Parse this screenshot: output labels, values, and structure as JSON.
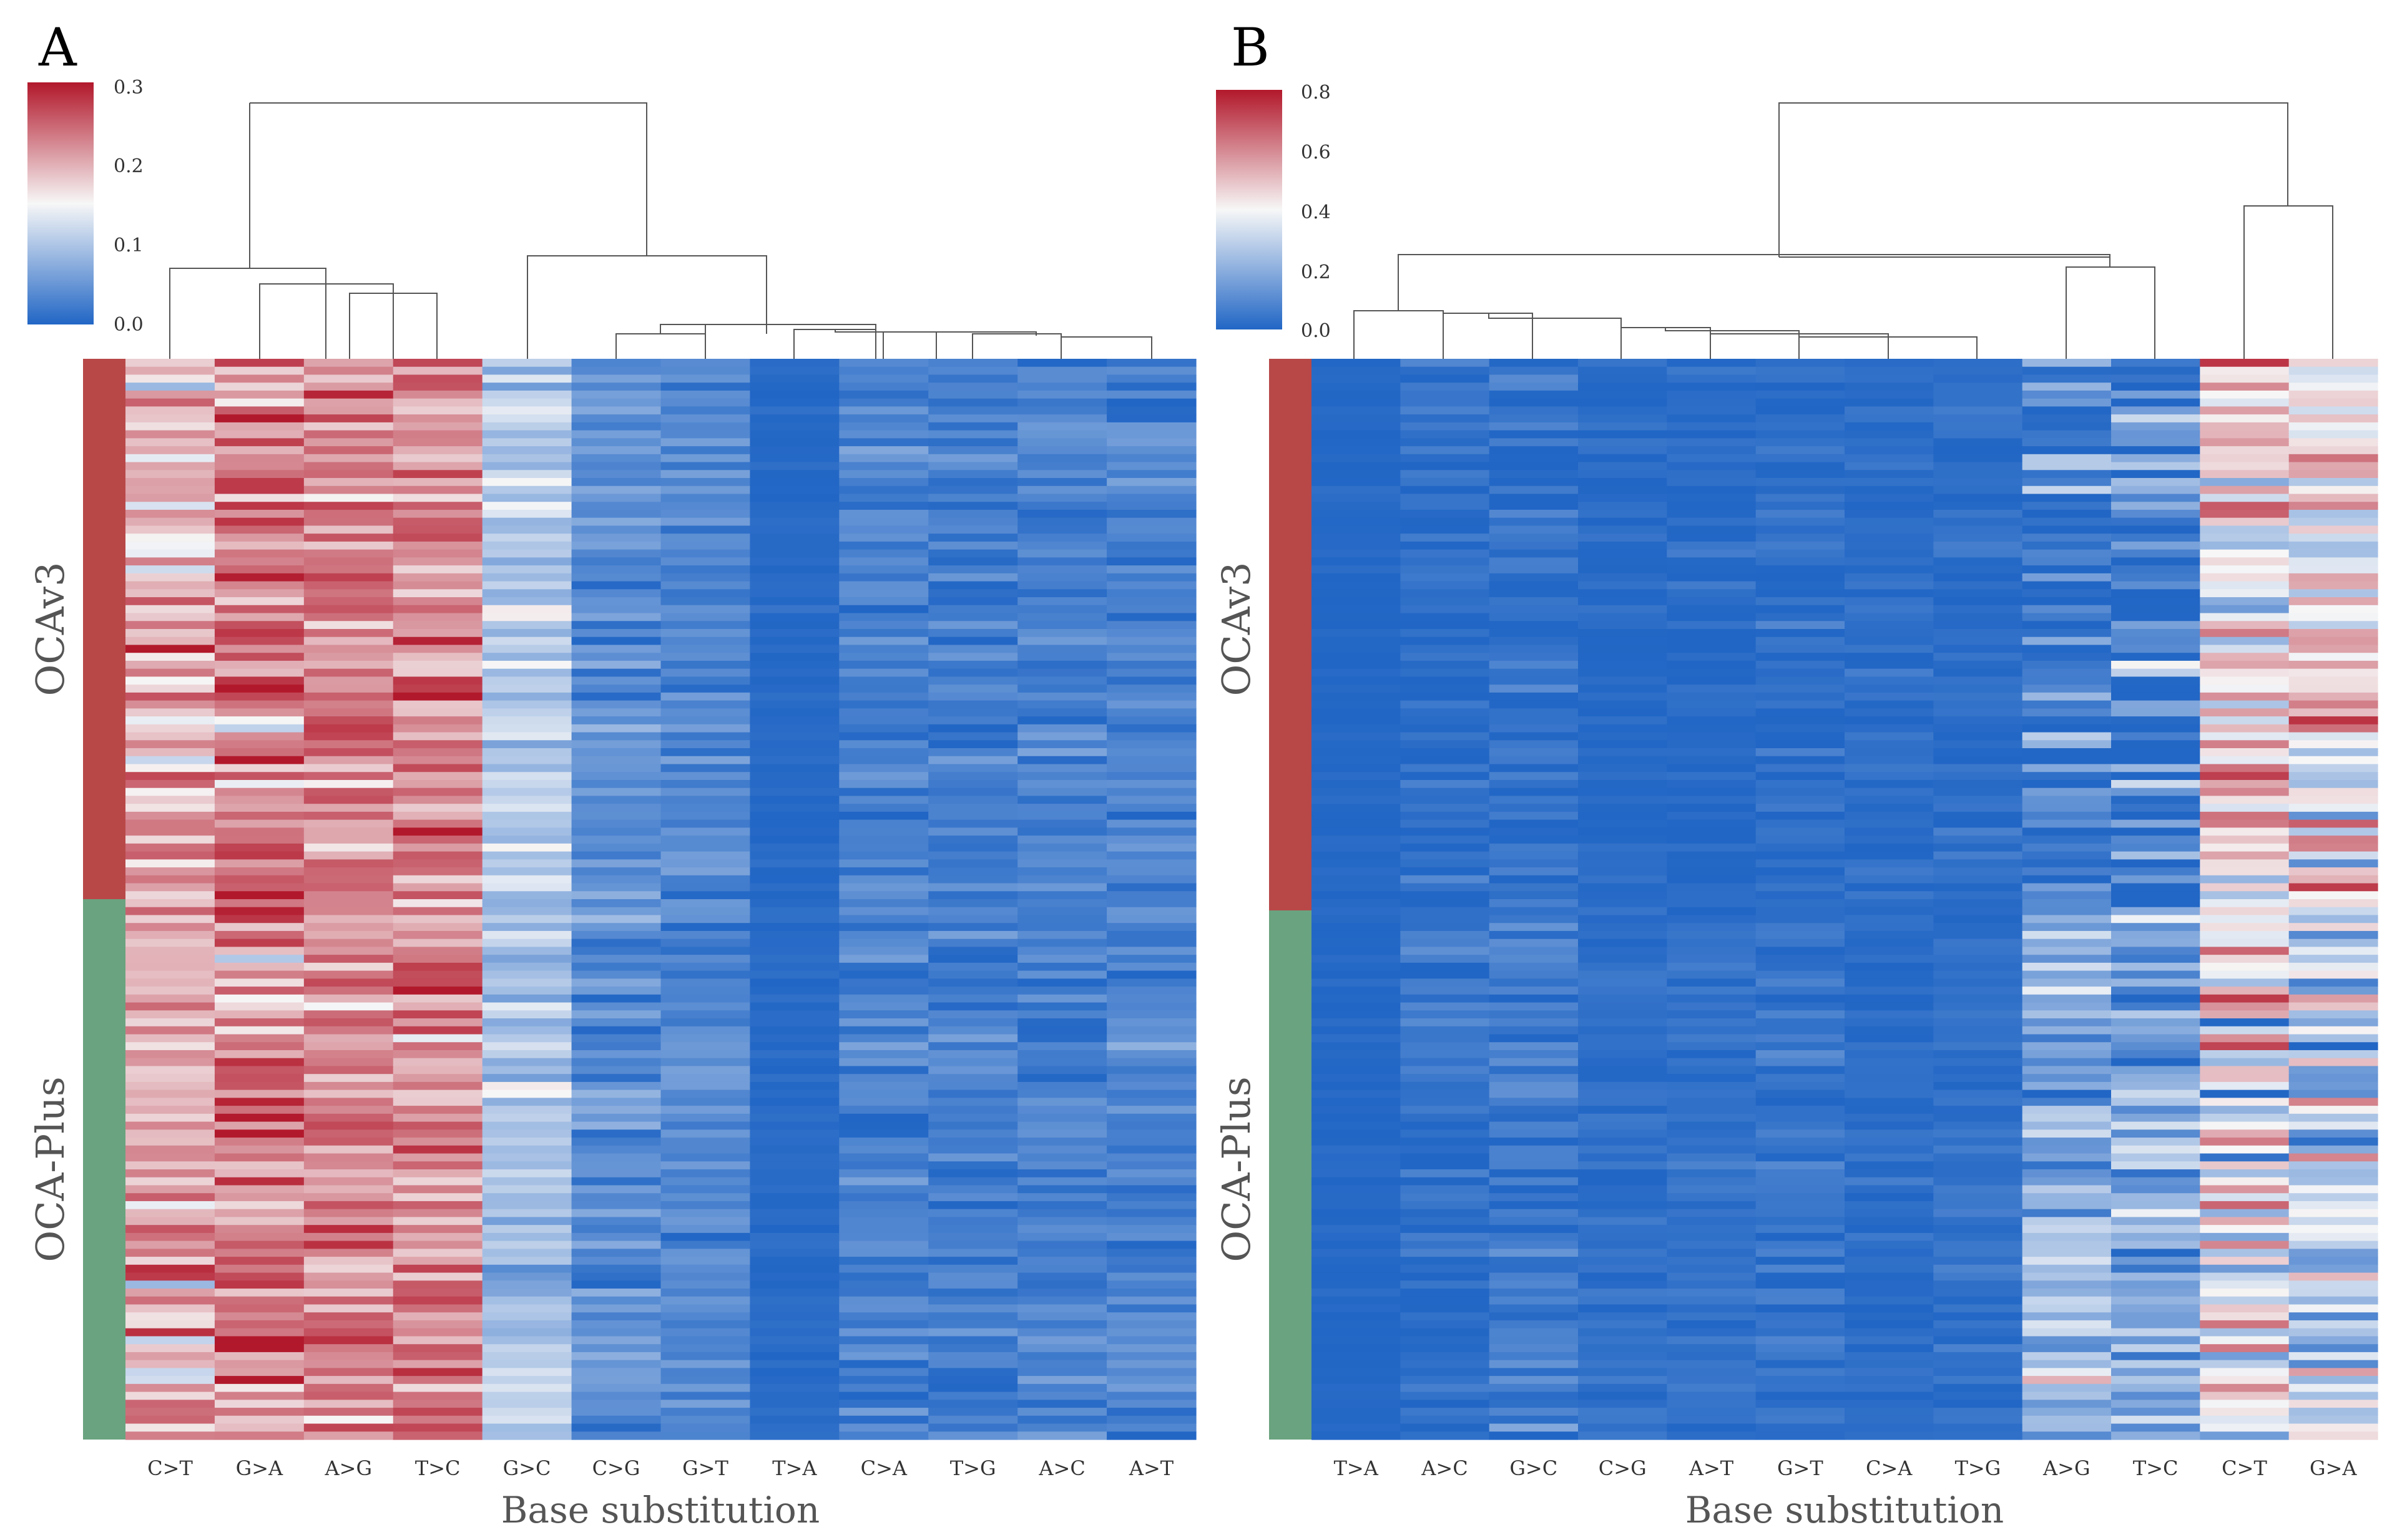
{
  "panels": [
    {
      "letter": "A",
      "xlabel": "Base substitution",
      "groups": [
        {
          "name": "OCAv3",
          "color": "#B84848",
          "rows": 68
        },
        {
          "name": "OCA-Plus",
          "color": "#6AA37F",
          "rows": 68
        }
      ],
      "colorbar": {
        "min": 0.0,
        "max": 0.3,
        "ticks": [
          "0.0",
          "0.1",
          "0.2",
          "0.3"
        ]
      }
    },
    {
      "letter": "B",
      "xlabel": "Base substitution",
      "groups": [
        {
          "name": "OCAv3",
          "color": "#B84848",
          "rows": 68
        },
        {
          "name": "OCA-Plus",
          "color": "#6AA37F",
          "rows": 68
        }
      ],
      "colorbar": {
        "min": 0.0,
        "max": 0.8,
        "ticks": [
          "0.0",
          "0.2",
          "0.4",
          "0.6",
          "0.8"
        ]
      }
    }
  ],
  "colors": {
    "low": "#2166C5",
    "mid": "#F7F7F7",
    "high": "#B2182B",
    "dendrogram": "#555555"
  },
  "chart_data": [
    {
      "type": "heatmap",
      "title": "A",
      "xlabel": "Base substitution",
      "categories": [
        "C>T",
        "G>A",
        "A>G",
        "T>C",
        "G>C",
        "C>G",
        "G>T",
        "T>A",
        "C>A",
        "T>G",
        "A>C",
        "A>T"
      ],
      "row_groups": [
        "OCAv3",
        "OCA-Plus"
      ],
      "rows_per_group": [
        68,
        68
      ],
      "column_means": [
        0.19,
        0.23,
        0.22,
        0.22,
        0.1,
        0.04,
        0.035,
        0.005,
        0.03,
        0.025,
        0.03,
        0.03
      ],
      "column_spread": [
        0.04,
        0.045,
        0.035,
        0.035,
        0.025,
        0.02,
        0.015,
        0.004,
        0.015,
        0.015,
        0.015,
        0.015
      ],
      "value_range": [
        0.0,
        0.3
      ],
      "dendrogram_order": [
        "C>T",
        "G>A",
        "A>G",
        "T>C",
        "G>C",
        "C>G",
        "G>T",
        "T>A",
        "C>A",
        "T>G",
        "A>C",
        "A>T"
      ]
    },
    {
      "type": "heatmap",
      "title": "B",
      "xlabel": "Base substitution",
      "categories": [
        "T>A",
        "A>C",
        "G>C",
        "C>G",
        "A>T",
        "G>T",
        "C>A",
        "T>G",
        "A>G",
        "T>C",
        "C>T",
        "G>A"
      ],
      "row_groups": [
        "OCAv3",
        "OCA-Plus"
      ],
      "rows_per_group": [
        68,
        68
      ],
      "column_means_ocav3": [
        0.005,
        0.02,
        0.03,
        0.015,
        0.01,
        0.02,
        0.02,
        0.02,
        0.05,
        0.06,
        0.45,
        0.45
      ],
      "column_means_ocaplus": [
        0.005,
        0.03,
        0.05,
        0.03,
        0.03,
        0.04,
        0.02,
        0.03,
        0.2,
        0.18,
        0.38,
        0.28
      ],
      "column_spread": [
        0.01,
        0.03,
        0.04,
        0.02,
        0.02,
        0.03,
        0.02,
        0.02,
        0.1,
        0.12,
        0.15,
        0.15
      ],
      "value_range": [
        0.0,
        0.8
      ]
    }
  ]
}
